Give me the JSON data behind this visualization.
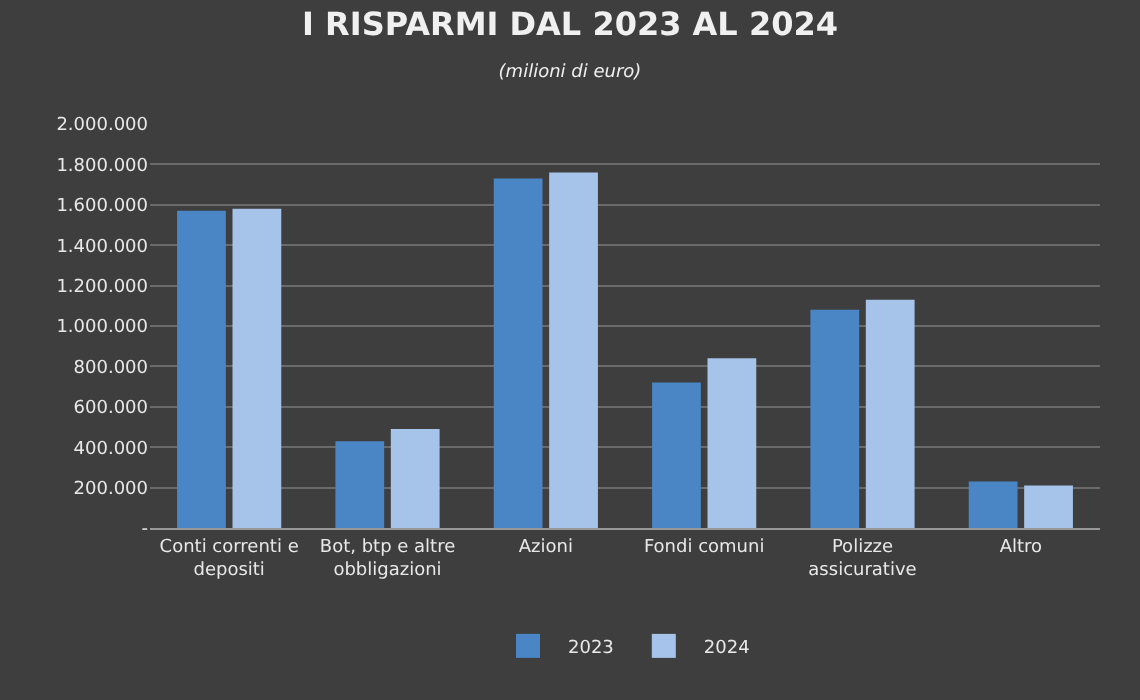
{
  "chart_data": {
    "type": "bar",
    "title": "I RISPARMI DAL 2023 AL 2024",
    "subtitle": "(milioni di euro)",
    "categories": [
      "Conti correnti e depositi",
      "Bot, btp e altre obbligazioni",
      "Azioni",
      "Fondi comuni",
      "Polizze assicurative",
      "Altro"
    ],
    "series": [
      {
        "name": "2023",
        "color": "#4a86c5",
        "values": [
          1570000,
          430000,
          1730000,
          720000,
          1080000,
          230000
        ]
      },
      {
        "name": "2024",
        "color": "#a6c4ea",
        "values": [
          1580000,
          490000,
          1760000,
          840000,
          1130000,
          210000
        ]
      }
    ],
    "ylim": [
      0,
      2000000
    ],
    "yticks": [
      {
        "value": 0,
        "label": "-"
      },
      {
        "value": 200000,
        "label": "200.000"
      },
      {
        "value": 400000,
        "label": "400.000"
      },
      {
        "value": 600000,
        "label": "600.000"
      },
      {
        "value": 800000,
        "label": "800.000"
      },
      {
        "value": 1000000,
        "label": "1.000.000"
      },
      {
        "value": 1200000,
        "label": "1.200.000"
      },
      {
        "value": 1400000,
        "label": "1.400.000"
      },
      {
        "value": 1600000,
        "label": "1.600.000"
      },
      {
        "value": 1800000,
        "label": "1.800.000"
      },
      {
        "value": 2000000,
        "label": "2.000.000"
      }
    ],
    "grid": "y",
    "legend": "bottom"
  }
}
